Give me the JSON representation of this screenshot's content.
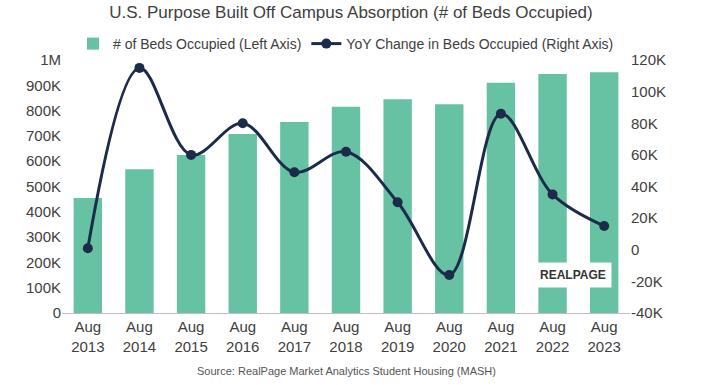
{
  "chart_data": {
    "type": "bar",
    "title": "U.S. Purpose Built Off Campus Absorption (# of Beds Occupied)",
    "categories": [
      "Aug 2013",
      "Aug 2014",
      "Aug 2015",
      "Aug 2016",
      "Aug 2017",
      "Aug 2018",
      "Aug 2019",
      "Aug 2020",
      "Aug 2021",
      "Aug 2022",
      "Aug 2023"
    ],
    "series": [
      {
        "name": "# of Beds Occupied (Left Axis)",
        "type": "bar",
        "color": "#66c2a2",
        "values": [
          455000,
          568000,
          625000,
          708000,
          755000,
          815000,
          845000,
          825000,
          910000,
          945000,
          952000
        ]
      },
      {
        "name": "YoY Change in Beds Occupied (Right Axis)",
        "type": "line",
        "axis": "y2",
        "color": "#1c2b4a",
        "marker": "circle",
        "line_style": "solid",
        "values": [
          1000,
          115000,
          60000,
          80000,
          49000,
          62000,
          30000,
          -16000,
          86000,
          35000,
          15000
        ]
      }
    ],
    "ylim": [
      0,
      1000000
    ],
    "yticks": [
      0,
      {
        "value": 100000,
        "label": "100K"
      },
      {
        "value": 200000,
        "label": "200K"
      },
      {
        "value": 300000,
        "label": "300K"
      },
      {
        "value": 400000,
        "label": "400K"
      },
      {
        "value": 500000,
        "label": "500K"
      },
      {
        "value": 600000,
        "label": "600K"
      },
      {
        "value": 700000,
        "label": "700K"
      },
      {
        "value": 800000,
        "label": "800K"
      },
      {
        "value": 900000,
        "label": "900K"
      },
      {
        "value": 1000000,
        "label": "1M"
      }
    ],
    "y2lim": [
      -40000,
      120000
    ],
    "y2ticks": [
      {
        "value": -40000,
        "label": "-40K"
      },
      {
        "value": -20000,
        "label": "-20K"
      },
      0,
      {
        "value": 20000,
        "label": "20K"
      },
      {
        "value": 40000,
        "label": "40K"
      },
      {
        "value": 60000,
        "label": "60K"
      },
      {
        "value": 80000,
        "label": "80K"
      },
      {
        "value": 100000,
        "label": "100K"
      },
      {
        "value": 120000,
        "label": "120K"
      }
    ],
    "grid": false,
    "legend": "top",
    "annotations": [
      "REALPAGE"
    ],
    "source": "Source: RealPage Market Analytics Student Housing (MASH)"
  }
}
